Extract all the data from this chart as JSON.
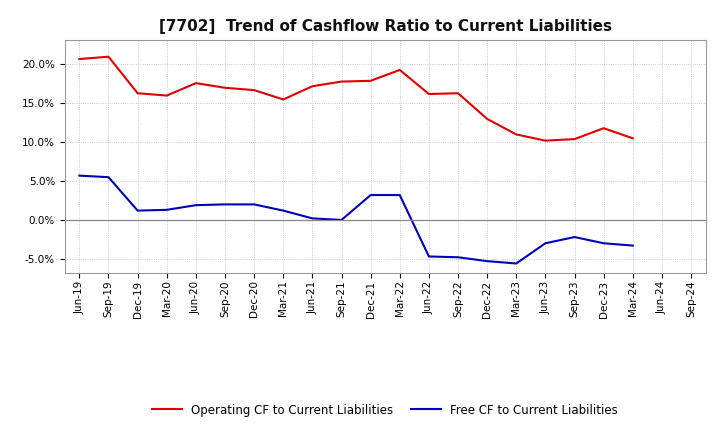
{
  "title": "[7702]  Trend of Cashflow Ratio to Current Liabilities",
  "x_labels": [
    "Jun-19",
    "Sep-19",
    "Dec-19",
    "Mar-20",
    "Jun-20",
    "Sep-20",
    "Dec-20",
    "Mar-21",
    "Jun-21",
    "Sep-21",
    "Dec-21",
    "Mar-22",
    "Jun-22",
    "Sep-22",
    "Dec-22",
    "Mar-23",
    "Jun-23",
    "Sep-23",
    "Dec-23",
    "Mar-24",
    "Jun-24",
    "Sep-24"
  ],
  "operating_cf": [
    0.207,
    0.21,
    0.163,
    0.16,
    0.176,
    0.17,
    0.167,
    0.155,
    0.172,
    0.178,
    0.179,
    0.193,
    0.162,
    0.163,
    0.13,
    0.11,
    0.102,
    0.104,
    0.118,
    0.105,
    null,
    null
  ],
  "free_cf": [
    0.057,
    0.055,
    0.012,
    0.013,
    0.019,
    0.02,
    0.02,
    0.012,
    0.002,
    0.0,
    0.032,
    0.032,
    -0.047,
    -0.048,
    -0.053,
    -0.056,
    -0.03,
    -0.022,
    -0.03,
    -0.033,
    null,
    null
  ],
  "ylim": [
    -0.068,
    0.232
  ],
  "yticks": [
    -0.05,
    0.0,
    0.05,
    0.1,
    0.15,
    0.2
  ],
  "operating_color": "#dd0000",
  "free_color": "#0000bb",
  "background_color": "#ffffff",
  "plot_bg_color": "#ffffff",
  "grid_color": "#bbbbbb",
  "zero_line_color": "#888888",
  "legend_operating": "Operating CF to Current Liabilities",
  "legend_free": "Free CF to Current Liabilities",
  "title_fontsize": 11,
  "tick_fontsize": 7.5,
  "legend_fontsize": 8.5,
  "linewidth": 1.5
}
